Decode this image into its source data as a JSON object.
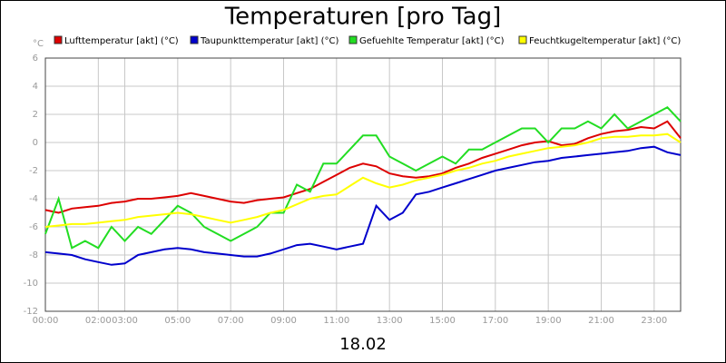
{
  "chart_data": {
    "type": "line",
    "title": "Temperaturen [pro Tag]",
    "xlabel": "18.02",
    "ylabel": "°C",
    "x": [
      0,
      0.5,
      1,
      1.5,
      2,
      2.5,
      3,
      3.5,
      4,
      4.5,
      5,
      5.5,
      6,
      6.5,
      7,
      7.5,
      8,
      8.5,
      9,
      9.5,
      10,
      10.5,
      11,
      11.5,
      12,
      12.5,
      13,
      13.5,
      14,
      14.5,
      15,
      15.5,
      16,
      16.5,
      17,
      17.5,
      18,
      18.5,
      19,
      19.5,
      20,
      20.5,
      21,
      21.5,
      22,
      22.5,
      23,
      23.5,
      24
    ],
    "xlim": [
      0,
      24
    ],
    "xticks": [
      {
        "value": 0,
        "label": "00:00"
      },
      {
        "value": 2,
        "label": "02:00"
      },
      {
        "value": 3,
        "label": "03:00"
      },
      {
        "value": 5,
        "label": "05:00"
      },
      {
        "value": 7,
        "label": "07:00"
      },
      {
        "value": 9,
        "label": "09:00"
      },
      {
        "value": 11,
        "label": "11:00"
      },
      {
        "value": 13,
        "label": "13:00"
      },
      {
        "value": 15,
        "label": "15:00"
      },
      {
        "value": 17,
        "label": "17:00"
      },
      {
        "value": 19,
        "label": "19:00"
      },
      {
        "value": 21,
        "label": "21:00"
      },
      {
        "value": 23,
        "label": "23:00"
      }
    ],
    "ylim": [
      -12,
      6
    ],
    "yticks": [
      6,
      4,
      2,
      0,
      -2,
      -4,
      -6,
      -8,
      -10,
      -12
    ],
    "grid": true,
    "series": [
      {
        "name": "Lufttemperatur [akt] (°C)",
        "color": "#dd0000",
        "values": [
          -4.8,
          -5.0,
          -4.7,
          -4.6,
          -4.5,
          -4.3,
          -4.2,
          -4.0,
          -4.0,
          -3.9,
          -3.8,
          -3.6,
          -3.8,
          -4.0,
          -4.2,
          -4.3,
          -4.1,
          -4.0,
          -3.9,
          -3.6,
          -3.3,
          -2.8,
          -2.3,
          -1.8,
          -1.5,
          -1.7,
          -2.2,
          -2.4,
          -2.5,
          -2.4,
          -2.2,
          -1.8,
          -1.5,
          -1.1,
          -0.8,
          -0.5,
          -0.2,
          0.0,
          0.1,
          -0.2,
          -0.1,
          0.3,
          0.6,
          0.8,
          0.9,
          1.1,
          1.0,
          1.5,
          0.3
        ]
      },
      {
        "name": "Taupunkttemperatur [akt] (°C)",
        "color": "#0000cc",
        "values": [
          -7.8,
          -7.9,
          -8.0,
          -8.3,
          -8.5,
          -8.7,
          -8.6,
          -8.0,
          -7.8,
          -7.6,
          -7.5,
          -7.6,
          -7.8,
          -7.9,
          -8.0,
          -8.1,
          -8.1,
          -7.9,
          -7.6,
          -7.3,
          -7.2,
          -7.4,
          -7.6,
          -7.4,
          -7.2,
          -4.5,
          -5.5,
          -5.0,
          -3.7,
          -3.5,
          -3.2,
          -2.9,
          -2.6,
          -2.3,
          -2.0,
          -1.8,
          -1.6,
          -1.4,
          -1.3,
          -1.1,
          -1.0,
          -0.9,
          -0.8,
          -0.7,
          -0.6,
          -0.4,
          -0.3,
          -0.7,
          -0.9
        ]
      },
      {
        "name": "Gefuehlte Temperatur [akt] (°C)",
        "color": "#22dd22",
        "values": [
          -6.5,
          -4,
          -7.5,
          -7,
          -7.5,
          -6,
          -7,
          -6,
          -6.5,
          -5.5,
          -4.5,
          -5,
          -6,
          -6.5,
          -7,
          -6.5,
          -6,
          -5,
          -5,
          -3,
          -3.5,
          -1.5,
          -1.5,
          -0.5,
          0.5,
          0.5,
          -1,
          -1.5,
          -2,
          -1.5,
          -1,
          -1.5,
          -0.5,
          -0.5,
          0,
          0.5,
          1,
          1,
          0,
          1,
          1,
          1.5,
          1,
          2,
          1,
          1.5,
          2,
          2.5,
          1.5
        ]
      },
      {
        "name": "Feuchtkugeltemperatur [akt] (°C)",
        "color": "#ffff00",
        "values": [
          -6.0,
          -5.9,
          -5.8,
          -5.8,
          -5.7,
          -5.6,
          -5.5,
          -5.3,
          -5.2,
          -5.1,
          -5.0,
          -5.1,
          -5.3,
          -5.5,
          -5.7,
          -5.5,
          -5.3,
          -5.0,
          -4.8,
          -4.4,
          -4.0,
          -3.8,
          -3.7,
          -3.1,
          -2.5,
          -2.9,
          -3.2,
          -3.0,
          -2.7,
          -2.5,
          -2.3,
          -2.0,
          -1.8,
          -1.5,
          -1.3,
          -1.0,
          -0.8,
          -0.6,
          -0.4,
          -0.3,
          -0.2,
          0.0,
          0.3,
          0.4,
          0.4,
          0.5,
          0.5,
          0.6,
          0.0
        ]
      }
    ]
  }
}
